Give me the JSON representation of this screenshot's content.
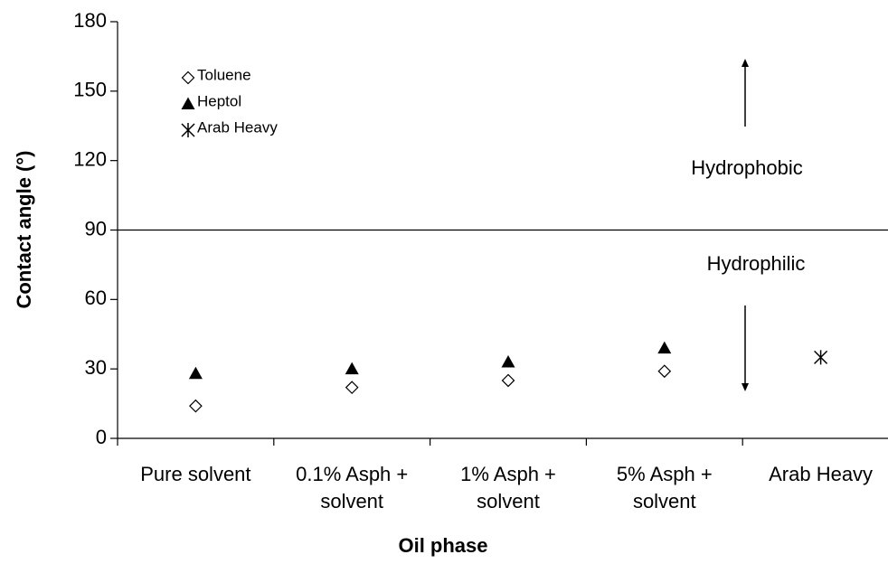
{
  "chart_data": {
    "type": "scatter",
    "x_label": "Oil phase",
    "y_label": "Contact angle (°)",
    "categories": [
      "Pure solvent",
      "0.1% Asph + solvent",
      "1% Asph + solvent",
      "5% Asph + solvent",
      "Arab Heavy"
    ],
    "series": [
      {
        "name": "Toluene",
        "color": "#000000",
        "marker": "diamond",
        "values": [
          14,
          22,
          25,
          29,
          null
        ]
      },
      {
        "name": "Heptol",
        "color": "#000000",
        "marker": "triangle",
        "values": [
          28,
          30,
          33,
          39,
          null
        ]
      },
      {
        "name": "Arab Heavy",
        "color": "#000000",
        "marker": "asterisk",
        "values": [
          null,
          null,
          null,
          null,
          35
        ]
      }
    ],
    "ylim": [
      0,
      180
    ],
    "yticks": [
      0,
      30,
      60,
      90,
      120,
      150,
      180
    ],
    "reference_line": 90,
    "annotations": [
      "Hydrophobic",
      "Hydrophilic"
    ],
    "legend": "upper left",
    "grid": false
  }
}
